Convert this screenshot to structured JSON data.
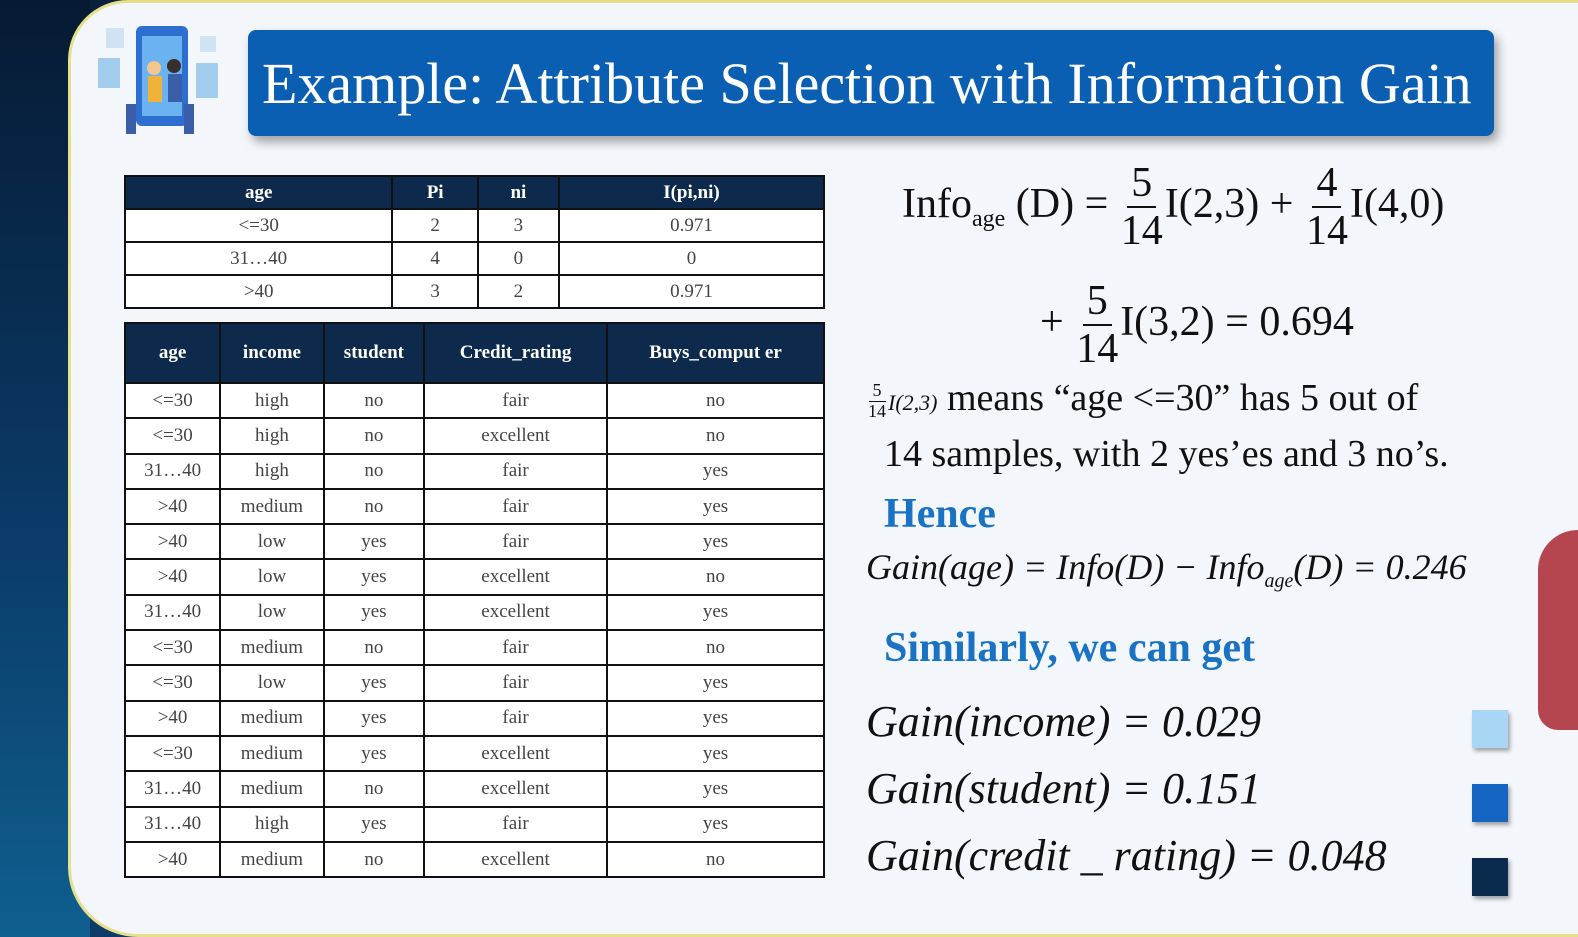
{
  "title": "Example: Attribute Selection with Information Gain",
  "summary_table": {
    "headers": [
      "age",
      "Pi",
      "ni",
      "I(pi,ni)"
    ],
    "rows": [
      [
        "<=30",
        "2",
        "3",
        "0.971"
      ],
      [
        "31…40",
        "4",
        "0",
        "0"
      ],
      [
        ">40",
        "3",
        "2",
        "0.971"
      ]
    ]
  },
  "data_table": {
    "headers": [
      "age",
      "income",
      "student",
      "Credit_rating",
      "Buys_comput er"
    ],
    "rows": [
      [
        "<=30",
        "high",
        "no",
        "fair",
        "no"
      ],
      [
        "<=30",
        "high",
        "no",
        "excellent",
        "no"
      ],
      [
        "31…40",
        "high",
        "no",
        "fair",
        "yes"
      ],
      [
        ">40",
        "medium",
        "no",
        "fair",
        "yes"
      ],
      [
        ">40",
        "low",
        "yes",
        "fair",
        "yes"
      ],
      [
        ">40",
        "low",
        "yes",
        "excellent",
        "no"
      ],
      [
        "31…40",
        "low",
        "yes",
        "excellent",
        "yes"
      ],
      [
        "<=30",
        "medium",
        "no",
        "fair",
        "no"
      ],
      [
        "<=30",
        "low",
        "yes",
        "fair",
        "yes"
      ],
      [
        ">40",
        "medium",
        "yes",
        "fair",
        "yes"
      ],
      [
        "<=30",
        "medium",
        "yes",
        "excellent",
        "yes"
      ],
      [
        "31…40",
        "medium",
        "no",
        "excellent",
        "yes"
      ],
      [
        "31…40",
        "high",
        "yes",
        "fair",
        "yes"
      ],
      [
        ">40",
        "medium",
        "no",
        "excellent",
        "no"
      ]
    ]
  },
  "formula": {
    "info": "Info",
    "sub_age": "age",
    "d": "(D) =",
    "f1_num": "5",
    "f1_den": "14",
    "term1": "I(2,3) +",
    "f2_num": "4",
    "f2_den": "14",
    "term2": "I(4,0)",
    "plus": "+",
    "f3_num": "5",
    "f3_den": "14",
    "term3": "I(3,2) = 0.694"
  },
  "explanation": {
    "f_num": "5",
    "f_den": "14",
    "f_term": "I(2,3)",
    "line1": "means “age <=30” has 5 out of",
    "line2": "14 samples, with 2 yes’es  and 3 no’s."
  },
  "hence": "Hence",
  "gain_age": {
    "left": "Gain(age) = Info(D) − Info",
    "sub": "age",
    "right": "(D) = 0.246"
  },
  "similarly": "Similarly, we can get",
  "gains": [
    {
      "expr": "Gain(income) = 0.029",
      "color": "#a9d6f5"
    },
    {
      "expr": "Gain(student) = 0.151",
      "color": "#1466c2"
    },
    {
      "expr": "Gain(credit _ rating) = 0.048",
      "color": "#0a2a4e"
    }
  ]
}
